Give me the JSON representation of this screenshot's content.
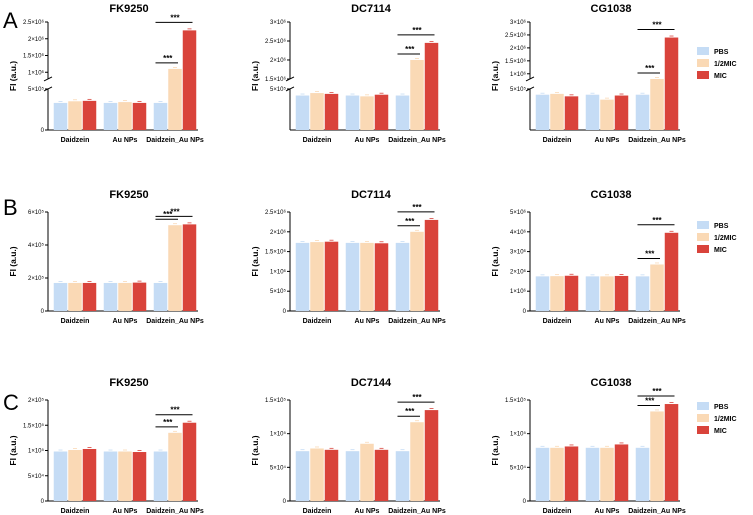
{
  "panels": [
    "A",
    "B",
    "C"
  ],
  "legend": [
    {
      "label": "PBS",
      "color": "#c5dcf5"
    },
    {
      "label": "1/2MIC",
      "color": "#fad9b5"
    },
    {
      "label": "MIC",
      "color": "#d9433b"
    }
  ],
  "significance_label": "***",
  "chart_data": [
    {
      "panel": "A",
      "type": "bar",
      "title": "FK9250",
      "ylabel": "FI (a.u.)",
      "categories": [
        "Daidzein",
        "Au NPs",
        "Daidzein_Au NPs"
      ],
      "series": [
        {
          "name": "PBS",
          "values": [
            330000,
            330000,
            330000
          ]
        },
        {
          "name": "1/2MIC",
          "values": [
            350000,
            340000,
            1100000
          ]
        },
        {
          "name": "MIC",
          "values": [
            355000,
            330000,
            2250000
          ]
        }
      ],
      "broken_axis": {
        "lower": [
          0,
          500000
        ],
        "upper": [
          800000,
          2500000
        ]
      },
      "yticks_lower": [
        0,
        500000
      ],
      "ytick_labels_lower": [
        "0",
        "5×10⁵"
      ],
      "yticks_upper": [
        1000000,
        1500000,
        2000000,
        2500000
      ],
      "ytick_labels_upper": [
        "1×10⁶",
        "1.5×10⁶",
        "2×10⁶",
        "2.5×10⁶"
      ],
      "significance": [
        {
          "category": 2,
          "compare": "1/2MIC",
          "label": "***"
        },
        {
          "category": 2,
          "compare": "MIC",
          "label": "***"
        }
      ]
    },
    {
      "panel": "A",
      "type": "bar",
      "title": "DC7114",
      "ylabel": "FI (a.u.)",
      "categories": [
        "Daidzein",
        "Au NPs",
        "Daidzein_Au NPs"
      ],
      "series": [
        {
          "name": "PBS",
          "values": [
            420000,
            420000,
            420000
          ]
        },
        {
          "name": "1/2MIC",
          "values": [
            450000,
            410000,
            2000000
          ]
        },
        {
          "name": "MIC",
          "values": [
            440000,
            430000,
            2450000
          ]
        }
      ],
      "broken_axis": {
        "lower": [
          0,
          500000
        ],
        "upper": [
          1500000,
          3000000
        ]
      },
      "yticks_lower": [
        500000
      ],
      "ytick_labels_lower": [
        "5×10⁵"
      ],
      "yticks_upper": [
        1500000,
        2000000,
        2500000,
        3000000
      ],
      "ytick_labels_upper": [
        "1.5×10⁶",
        "2×10⁶",
        "2.5×10⁶",
        "3×10⁶"
      ],
      "significance": [
        {
          "category": 2,
          "compare": "1/2MIC",
          "label": "***"
        },
        {
          "category": 2,
          "compare": "MIC",
          "label": "***"
        }
      ]
    },
    {
      "panel": "A",
      "type": "bar",
      "title": "CG1038",
      "ylabel": "FI (a.u.)",
      "categories": [
        "Daidzein",
        "Au NPs",
        "Daidzein_Au NPs"
      ],
      "series": [
        {
          "name": "PBS",
          "values": [
            430000,
            430000,
            430000
          ]
        },
        {
          "name": "1/2MIC",
          "values": [
            440000,
            370000,
            800000
          ]
        },
        {
          "name": "MIC",
          "values": [
            410000,
            420000,
            2400000
          ]
        }
      ],
      "broken_axis": {
        "lower": [
          0,
          500000
        ],
        "upper": [
          800000,
          3000000
        ]
      },
      "yticks_lower": [
        500000
      ],
      "ytick_labels_lower": [
        "5×10⁵"
      ],
      "yticks_upper": [
        1000000,
        1500000,
        2000000,
        2500000,
        3000000
      ],
      "ytick_labels_upper": [
        "1×10⁶",
        "1.5×10⁶",
        "2×10⁶",
        "2.5×10⁶",
        "3×10⁶"
      ],
      "significance": [
        {
          "category": 2,
          "compare": "1/2MIC",
          "label": "***"
        },
        {
          "category": 2,
          "compare": "MIC",
          "label": "***"
        }
      ]
    },
    {
      "panel": "B",
      "type": "bar",
      "title": "FK9250",
      "ylabel": "FI (a.u.)",
      "categories": [
        "Daidzein",
        "Au NPs",
        "Daidzein_Au NPs"
      ],
      "series": [
        {
          "name": "PBS",
          "values": [
            170000,
            170000,
            170000
          ]
        },
        {
          "name": "1/2MIC",
          "values": [
            170000,
            170000,
            520000
          ]
        },
        {
          "name": "MIC",
          "values": [
            170000,
            172000,
            525000
          ]
        }
      ],
      "ylim": [
        0,
        600000
      ],
      "yticks": [
        0,
        200000,
        400000,
        600000
      ],
      "ytick_labels": [
        "0",
        "2×10⁵",
        "4×10⁵",
        "6×10⁵"
      ],
      "significance": [
        {
          "category": 2,
          "compare": "1/2MIC",
          "label": "***"
        },
        {
          "category": 2,
          "compare": "MIC",
          "label": "***"
        }
      ]
    },
    {
      "panel": "B",
      "type": "bar",
      "title": "DC7114",
      "ylabel": "FI (a.u.)",
      "categories": [
        "Daidzein",
        "Au NPs",
        "Daidzein_Au NPs"
      ],
      "series": [
        {
          "name": "PBS",
          "values": [
            1720000,
            1720000,
            1720000
          ]
        },
        {
          "name": "1/2MIC",
          "values": [
            1740000,
            1720000,
            2000000
          ]
        },
        {
          "name": "MIC",
          "values": [
            1750000,
            1710000,
            2300000
          ]
        }
      ],
      "ylim": [
        0,
        2500000
      ],
      "yticks": [
        0,
        500000,
        1000000,
        1500000,
        2000000,
        2500000
      ],
      "ytick_labels": [
        "0",
        "5×10⁵",
        "1×10⁶",
        "1.5×10⁶",
        "2×10⁶",
        "2.5×10⁶"
      ],
      "significance": [
        {
          "category": 2,
          "compare": "1/2MIC",
          "label": "***"
        },
        {
          "category": 2,
          "compare": "MIC",
          "label": "***"
        }
      ]
    },
    {
      "panel": "B",
      "type": "bar",
      "title": "CG1038",
      "ylabel": "FI (a.u.)",
      "categories": [
        "Daidzein",
        "Au NPs",
        "Daidzein_Au NPs"
      ],
      "series": [
        {
          "name": "PBS",
          "values": [
            1750000,
            1750000,
            1750000
          ]
        },
        {
          "name": "1/2MIC",
          "values": [
            1760000,
            1750000,
            2350000
          ]
        },
        {
          "name": "MIC",
          "values": [
            1780000,
            1770000,
            3950000
          ]
        }
      ],
      "ylim": [
        0,
        5000000
      ],
      "yticks": [
        0,
        1000000,
        2000000,
        3000000,
        4000000,
        5000000
      ],
      "ytick_labels": [
        "0",
        "1×10⁶",
        "2×10⁶",
        "3×10⁶",
        "4×10⁶",
        "5×10⁶"
      ],
      "significance": [
        {
          "category": 2,
          "compare": "1/2MIC",
          "label": "***"
        },
        {
          "category": 2,
          "compare": "MIC",
          "label": "***"
        }
      ]
    },
    {
      "panel": "C",
      "type": "bar",
      "title": "FK9250",
      "ylabel": "FI (a.u.)",
      "categories": [
        "Daidzein",
        "Au NPs",
        "Daidzein_Au NPs"
      ],
      "series": [
        {
          "name": "PBS",
          "values": [
            98000,
            98000,
            98000
          ]
        },
        {
          "name": "1/2MIC",
          "values": [
            101000,
            98000,
            135000
          ]
        },
        {
          "name": "MIC",
          "values": [
            103000,
            97000,
            155000
          ]
        }
      ],
      "ylim": [
        0,
        200000
      ],
      "yticks": [
        0,
        50000,
        100000,
        150000,
        200000
      ],
      "ytick_labels": [
        "0",
        "5×10⁴",
        "1×10⁵",
        "1.5×10⁵",
        "2×10⁵"
      ],
      "significance": [
        {
          "category": 2,
          "compare": "1/2MIC",
          "label": "***"
        },
        {
          "category": 2,
          "compare": "MIC",
          "label": "***"
        }
      ]
    },
    {
      "panel": "C",
      "type": "bar",
      "title": "DC7144",
      "ylabel": "FI (a.u.)",
      "categories": [
        "Daidzein",
        "Au NPs",
        "Daidzein_Au NPs"
      ],
      "series": [
        {
          "name": "PBS",
          "values": [
            74000,
            74000,
            74000
          ]
        },
        {
          "name": "1/2MIC",
          "values": [
            78000,
            85000,
            117000
          ]
        },
        {
          "name": "MIC",
          "values": [
            76000,
            76000,
            135000
          ]
        }
      ],
      "ylim": [
        0,
        150000
      ],
      "yticks": [
        0,
        50000,
        100000,
        150000
      ],
      "ytick_labels": [
        "0",
        "5×10⁴",
        "1×10⁵",
        "1.5×10⁵"
      ],
      "significance": [
        {
          "category": 2,
          "compare": "1/2MIC",
          "label": "***"
        },
        {
          "category": 2,
          "compare": "MIC",
          "label": "***"
        }
      ]
    },
    {
      "panel": "C",
      "type": "bar",
      "title": "CG1038",
      "ylabel": "FI (a.u.)",
      "categories": [
        "Daidzein",
        "Au NPs",
        "Daidzein_Au NPs"
      ],
      "series": [
        {
          "name": "PBS",
          "values": [
            79000,
            79000,
            79000
          ]
        },
        {
          "name": "1/2MIC",
          "values": [
            79000,
            79000,
            133000
          ]
        },
        {
          "name": "MIC",
          "values": [
            81000,
            84000,
            144000
          ]
        }
      ],
      "ylim": [
        0,
        150000
      ],
      "yticks": [
        0,
        50000,
        100000,
        150000
      ],
      "ytick_labels": [
        "0",
        "5×10⁴",
        "1×10⁵",
        "1.5×10⁵"
      ],
      "significance": [
        {
          "category": 2,
          "compare": "1/2MIC",
          "label": "***"
        },
        {
          "category": 2,
          "compare": "MIC",
          "label": "***"
        }
      ]
    }
  ]
}
